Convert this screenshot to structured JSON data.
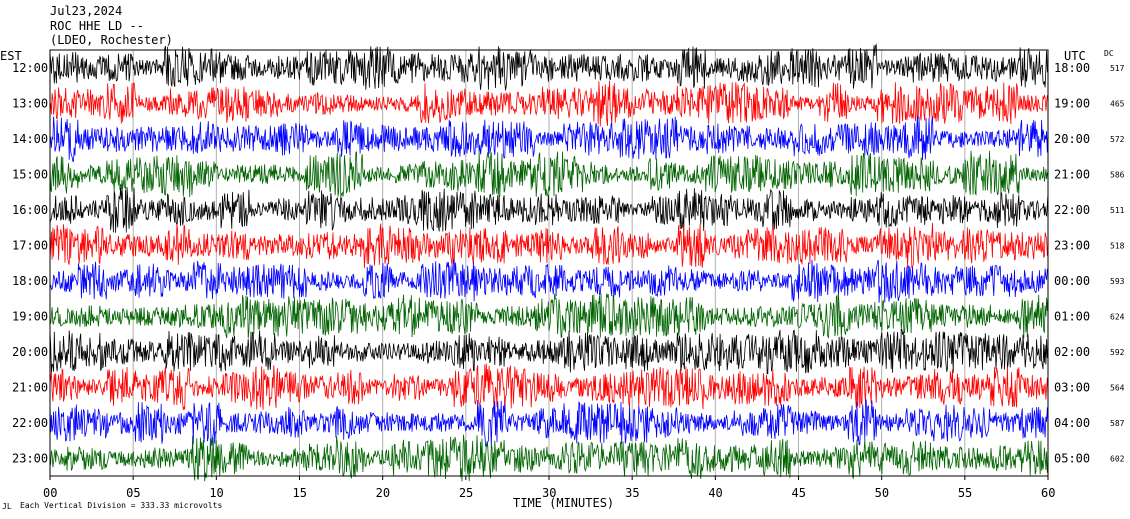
{
  "header": {
    "date": "Jul23,2024",
    "station": "ROC HHE LD --",
    "network": "(LDEO, Rochester)"
  },
  "left_axis_label": "EST",
  "right_axis_label": "UTC",
  "dc_label": "DC",
  "footer": {
    "mark": "JL",
    "scale_text": "Each Vertical Division =  333.33 microvolts"
  },
  "chart_data": {
    "type": "line",
    "title": "",
    "xlabel": "TIME (MINUTES)",
    "xlim": [
      0,
      60
    ],
    "x_ticks": [
      "00",
      "05",
      "10",
      "15",
      "20",
      "25",
      "30",
      "35",
      "40",
      "45",
      "50",
      "55",
      "60"
    ],
    "colors": [
      "#000000",
      "#ff0000",
      "#0000ff",
      "#006400"
    ],
    "traces": [
      {
        "est": "12:00",
        "utc": "18:00",
        "dc": "517",
        "color": "#000000"
      },
      {
        "est": "13:00",
        "utc": "19:00",
        "dc": "465",
        "color": "#ff0000"
      },
      {
        "est": "14:00",
        "utc": "20:00",
        "dc": "572",
        "color": "#0000ff"
      },
      {
        "est": "15:00",
        "utc": "21:00",
        "dc": "586",
        "color": "#006400"
      },
      {
        "est": "16:00",
        "utc": "22:00",
        "dc": "511",
        "color": "#000000"
      },
      {
        "est": "17:00",
        "utc": "23:00",
        "dc": "518",
        "color": "#ff0000"
      },
      {
        "est": "18:00",
        "utc": "00:00",
        "dc": "593",
        "color": "#0000ff"
      },
      {
        "est": "19:00",
        "utc": "01:00",
        "dc": "624",
        "color": "#006400"
      },
      {
        "est": "20:00",
        "utc": "02:00",
        "dc": "592",
        "color": "#000000"
      },
      {
        "est": "21:00",
        "utc": "03:00",
        "dc": "564",
        "color": "#ff0000"
      },
      {
        "est": "22:00",
        "utc": "04:00",
        "dc": "587",
        "color": "#0000ff"
      },
      {
        "est": "23:00",
        "utc": "05:00",
        "dc": "602",
        "color": "#006400"
      }
    ]
  }
}
